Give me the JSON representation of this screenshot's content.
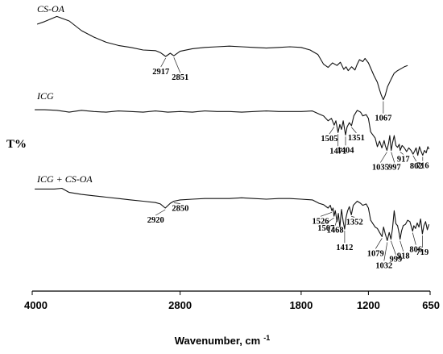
{
  "chart_data": {
    "type": "line",
    "title": "",
    "xlabel": "Wavenumber, cm",
    "xlabel_superscript": "-1",
    "ylabel": "T%",
    "xlim": [
      4000,
      650
    ],
    "xticks": [
      "4000",
      "2800",
      "1800",
      "1200",
      "650"
    ],
    "grid": false,
    "legend": "none",
    "series": [
      {
        "name": "CS-OA",
        "x": [
          3960,
          3900,
          3800,
          3700,
          3600,
          3500,
          3400,
          3300,
          3200,
          3100,
          3000,
          2960,
          2917,
          2880,
          2851,
          2800,
          2700,
          2600,
          2500,
          2400,
          2300,
          2200,
          2100,
          2000,
          1900,
          1800,
          1720,
          1650,
          1600,
          1560,
          1520,
          1480,
          1450,
          1420,
          1400,
          1380,
          1350,
          1320,
          1300,
          1280,
          1250,
          1230,
          1200,
          1180,
          1150,
          1120,
          1100,
          1085,
          1067,
          1050,
          1030,
          1000,
          970,
          940,
          910,
          880,
          850
        ],
        "y": [
          80,
          84,
          92,
          85,
          70,
          60,
          52,
          47,
          44,
          40,
          39,
          36,
          30,
          35,
          31,
          38,
          42,
          44,
          45,
          46,
          45,
          44,
          43,
          44,
          45,
          44,
          40,
          33,
          18,
          13,
          20,
          16,
          21,
          10,
          14,
          8,
          14,
          9,
          18,
          25,
          22,
          27,
          20,
          12,
          0,
          -10,
          -22,
          -30,
          -37,
          -30,
          -17,
          -6,
          4,
          8,
          11,
          14,
          16
        ]
      },
      {
        "name": "ICG",
        "x": [
          3980,
          3900,
          3800,
          3700,
          3600,
          3500,
          3400,
          3300,
          3200,
          3100,
          3000,
          2900,
          2800,
          2700,
          2600,
          2500,
          2400,
          2300,
          2200,
          2100,
          2000,
          1900,
          1800,
          1700,
          1640,
          1600,
          1560,
          1530,
          1505,
          1490,
          1471,
          1455,
          1440,
          1425,
          1404,
          1390,
          1370,
          1351,
          1330,
          1300,
          1270,
          1250,
          1220,
          1200,
          1180,
          1160,
          1140,
          1120,
          1100,
          1080,
          1060,
          1050,
          1035,
          1020,
          1010,
          997,
          985,
          970,
          955,
          940,
          925,
          917,
          900,
          880,
          860,
          840,
          820,
          802,
          790,
          775,
          760,
          745,
          730,
          716,
          700,
          685,
          670,
          660
        ],
        "y": [
          96,
          96,
          95,
          92,
          95,
          93,
          92,
          94,
          93,
          92,
          94,
          92,
          93,
          92,
          94,
          93,
          93,
          92,
          93,
          94,
          93,
          93,
          93,
          94,
          89,
          86,
          78,
          82,
          71,
          78,
          59,
          72,
          64,
          78,
          55,
          68,
          75,
          70,
          86,
          95,
          92,
          86,
          88,
          82,
          60,
          55,
          50,
          36,
          45,
          34,
          46,
          38,
          30,
          42,
          54,
          30,
          42,
          54,
          38,
          35,
          40,
          30,
          38,
          34,
          28,
          34,
          30,
          24,
          28,
          34,
          22,
          36,
          28,
          22,
          30,
          26,
          36,
          32
        ]
      },
      {
        "name": "ICG + CS-OA",
        "x": [
          3980,
          3900,
          3820,
          3760,
          3700,
          3600,
          3500,
          3400,
          3300,
          3200,
          3100,
          3000,
          2960,
          2920,
          2880,
          2850,
          2800,
          2700,
          2600,
          2500,
          2400,
          2300,
          2200,
          2100,
          2000,
          1900,
          1800,
          1700,
          1640,
          1600,
          1560,
          1540,
          1526,
          1515,
          1507,
          1495,
          1480,
          1468,
          1455,
          1440,
          1425,
          1412,
          1400,
          1385,
          1370,
          1352,
          1335,
          1300,
          1270,
          1250,
          1220,
          1200,
          1180,
          1160,
          1140,
          1120,
          1100,
          1079,
          1065,
          1050,
          1032,
          1015,
          999,
          985,
          970,
          955,
          940,
          925,
          918,
          905,
          890,
          870,
          850,
          830,
          806,
          795,
          780,
          765,
          750,
          735,
          719,
          705,
          690,
          675,
          660
        ],
        "y": [
          96,
          96,
          96,
          97,
          91,
          88,
          86,
          84,
          82,
          80,
          78,
          76,
          74,
          68,
          75,
          78,
          80,
          81,
          82,
          82,
          82,
          83,
          82,
          81,
          82,
          82,
          81,
          80,
          75,
          73,
          68,
          72,
          64,
          68,
          56,
          64,
          48,
          60,
          40,
          66,
          48,
          37,
          54,
          64,
          70,
          58,
          72,
          78,
          75,
          72,
          74,
          68,
          50,
          45,
          40,
          38,
          32,
          26,
          40,
          30,
          20,
          32,
          22,
          38,
          64,
          45,
          42,
          30,
          22,
          34,
          42,
          44,
          50,
          48,
          34,
          42,
          38,
          46,
          40,
          52,
          30,
          42,
          48,
          36,
          44
        ]
      }
    ],
    "annotations": [
      {
        "text": "2917",
        "series": "CS-OA",
        "x": 2917
      },
      {
        "text": "2851",
        "series": "CS-OA",
        "x": 2851
      },
      {
        "text": "1067",
        "series": "CS-OA",
        "x": 1067
      },
      {
        "text": "1505",
        "series": "ICG",
        "x": 1505
      },
      {
        "text": "1471",
        "series": "ICG",
        "x": 1471
      },
      {
        "text": "1404",
        "series": "ICG",
        "x": 1404
      },
      {
        "text": "1351",
        "series": "ICG",
        "x": 1351
      },
      {
        "text": "1035",
        "series": "ICG",
        "x": 1035
      },
      {
        "text": "997",
        "series": "ICG",
        "x": 997
      },
      {
        "text": "917",
        "series": "ICG",
        "x": 917
      },
      {
        "text": "802",
        "series": "ICG",
        "x": 802
      },
      {
        "text": "716",
        "series": "ICG",
        "x": 716
      },
      {
        "text": "2920",
        "series": "ICG + CS-OA",
        "x": 2920
      },
      {
        "text": "2850",
        "series": "ICG + CS-OA",
        "x": 2850
      },
      {
        "text": "1526",
        "series": "ICG + CS-OA",
        "x": 1526
      },
      {
        "text": "1507",
        "series": "ICG + CS-OA",
        "x": 1507
      },
      {
        "text": "1468",
        "series": "ICG + CS-OA",
        "x": 1468
      },
      {
        "text": "1412",
        "series": "ICG + CS-OA",
        "x": 1412
      },
      {
        "text": "1352",
        "series": "ICG + CS-OA",
        "x": 1352
      },
      {
        "text": "1079",
        "series": "ICG + CS-OA",
        "x": 1079
      },
      {
        "text": "1032",
        "series": "ICG + CS-OA",
        "x": 1032
      },
      {
        "text": "999",
        "series": "ICG + CS-OA",
        "x": 999
      },
      {
        "text": "918",
        "series": "ICG + CS-OA",
        "x": 918
      },
      {
        "text": "806",
        "series": "ICG + CS-OA",
        "x": 806
      },
      {
        "text": "719",
        "series": "ICG + CS-OA",
        "x": 719
      }
    ]
  }
}
